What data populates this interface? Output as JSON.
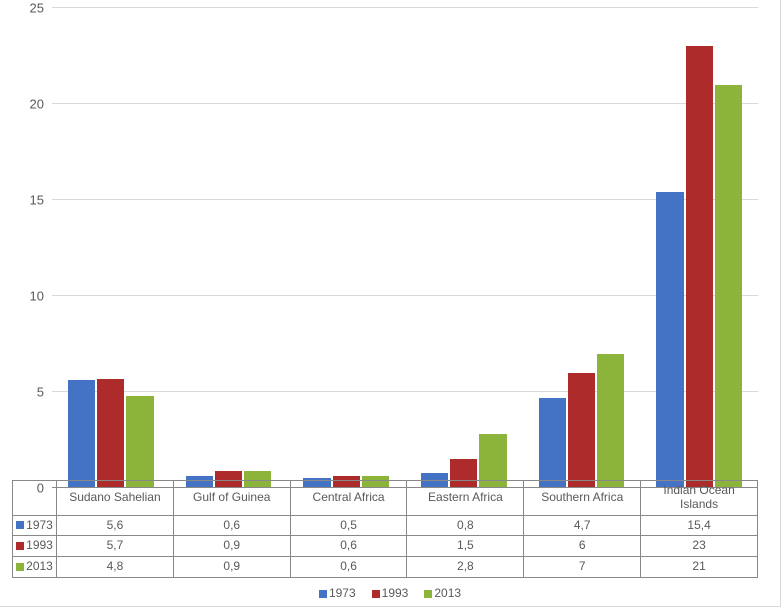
{
  "chart": {
    "type": "bar",
    "categories": [
      "Sudano Sahelian",
      "Gulf of Guinea",
      "Central Africa",
      "Eastern Africa",
      "Southern Africa",
      "Indian Ocean Islands"
    ],
    "series": [
      {
        "name": "1973",
        "color": "#4472c4",
        "values": [
          5.6,
          0.6,
          0.5,
          0.8,
          4.7,
          15.4
        ],
        "labels": [
          "5,6",
          "0,6",
          "0,5",
          "0,8",
          "4,7",
          "15,4"
        ]
      },
      {
        "name": "1993",
        "color": "#ad2b2b",
        "values": [
          5.7,
          0.9,
          0.6,
          1.5,
          6,
          23
        ],
        "labels": [
          "5,7",
          "0,9",
          "0,6",
          "1,5",
          "6",
          "23"
        ]
      },
      {
        "name": "2013",
        "color": "#8cb33a",
        "values": [
          4.8,
          0.9,
          0.6,
          2.8,
          7,
          21
        ],
        "labels": [
          "4,8",
          "0,9",
          "0,6",
          "2,8",
          "7",
          "21"
        ]
      }
    ],
    "ylim": [
      0,
      25
    ],
    "ytick_step": 5,
    "yticks": [
      0,
      5,
      10,
      15,
      20,
      25
    ],
    "background_color": "#ffffff",
    "grid_color": "#d9d9d9",
    "axis_color": "#888888",
    "label_color": "#595959",
    "label_fontsize": 12,
    "bar_gap": 2
  }
}
